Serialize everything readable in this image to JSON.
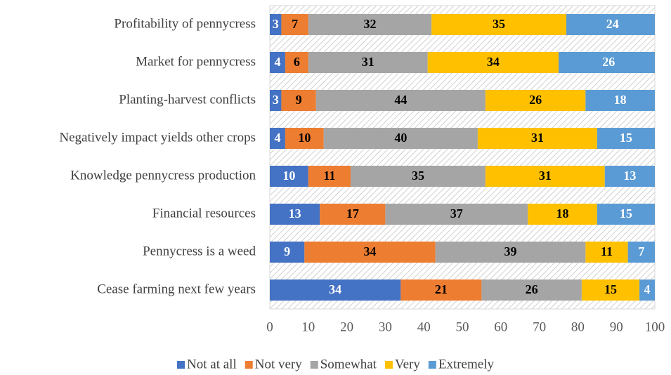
{
  "chart_data": {
    "type": "stacked-bar-horizontal",
    "categories": [
      "Profitability of pennycress",
      "Market for pennycress",
      "Planting-harvest conflicts",
      "Negatively impact yields other crops",
      "Knowledge pennycress production",
      "Financial resources",
      "Pennycress is a weed",
      "Cease farming next few years"
    ],
    "series": [
      {
        "name": "Not at all",
        "color": "#4472c4",
        "label_color": "#ffffff",
        "values": [
          3,
          4,
          3,
          4,
          10,
          13,
          9,
          34
        ]
      },
      {
        "name": "Not very",
        "color": "#ed7d31",
        "label_color": "#000000",
        "values": [
          7,
          6,
          9,
          10,
          11,
          17,
          34,
          21
        ]
      },
      {
        "name": "Somewhat",
        "color": "#a5a5a5",
        "label_color": "#000000",
        "values": [
          32,
          31,
          44,
          40,
          35,
          37,
          39,
          26
        ]
      },
      {
        "name": "Very",
        "color": "#ffc000",
        "label_color": "#000000",
        "values": [
          35,
          34,
          26,
          31,
          31,
          18,
          11,
          15
        ]
      },
      {
        "name": "Extremely",
        "color": "#5b9bd5",
        "label_color": "#ffffff",
        "values": [
          24,
          26,
          18,
          15,
          13,
          15,
          7,
          4
        ]
      }
    ],
    "xlim": [
      0,
      100
    ],
    "xticks": [
      0,
      10,
      20,
      30,
      40,
      50,
      60,
      70,
      80,
      90,
      100
    ],
    "legend": "bottom"
  }
}
